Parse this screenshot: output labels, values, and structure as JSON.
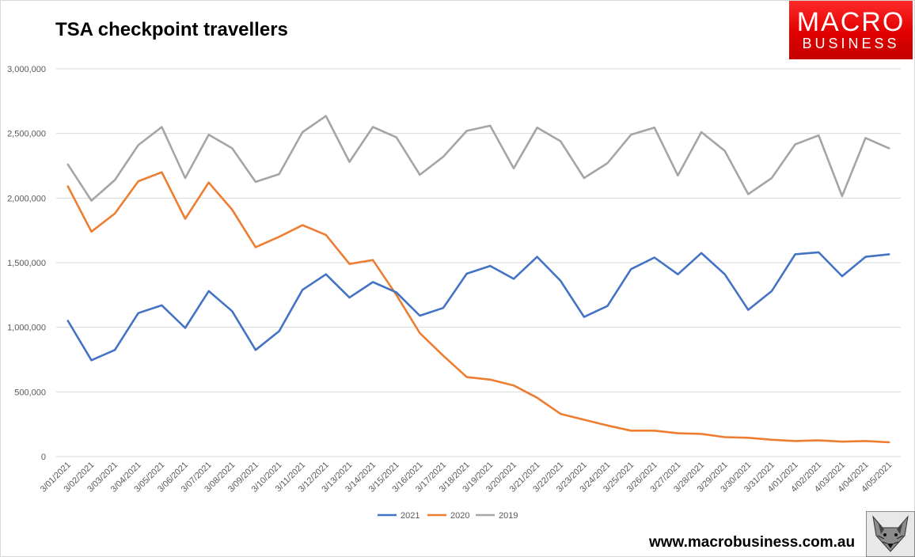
{
  "header": {
    "title": "TSA checkpoint travellers",
    "logo_line1": "MACRO",
    "logo_line2": "BUSINESS"
  },
  "footer": {
    "website": "www.macrobusiness.com.au"
  },
  "colors": {
    "s2021": "#4472c4",
    "s2020": "#ed7d31",
    "s2019": "#a5a5a5",
    "grid": "#d9d9d9",
    "logo_red": "#e00000"
  },
  "chart_data": {
    "type": "line",
    "title": "TSA checkpoint travellers",
    "xlabel": "",
    "ylabel": "",
    "ylim": [
      0,
      3000000
    ],
    "yticks": [
      0,
      500000,
      1000000,
      1500000,
      2000000,
      2500000,
      3000000
    ],
    "ytick_labels": [
      "0",
      "500,000",
      "1,000,000",
      "1,500,000",
      "2,000,000",
      "2,500,000",
      "3,000,000"
    ],
    "grid": true,
    "legend_position": "bottom",
    "categories": [
      "3/01/2021",
      "3/02/2021",
      "3/03/2021",
      "3/04/2021",
      "3/05/2021",
      "3/06/2021",
      "3/07/2021",
      "3/08/2021",
      "3/09/2021",
      "3/10/2021",
      "3/11/2021",
      "3/12/2021",
      "3/13/2021",
      "3/14/2021",
      "3/15/2021",
      "3/16/2021",
      "3/17/2021",
      "3/18/2021",
      "3/19/2021",
      "3/20/2021",
      "3/21/2021",
      "3/22/2021",
      "3/23/2021",
      "3/24/2021",
      "3/25/2021",
      "3/26/2021",
      "3/27/2021",
      "3/28/2021",
      "3/29/2021",
      "3/30/2021",
      "3/31/2021",
      "4/01/2021",
      "4/02/2021",
      "4/03/2021",
      "4/04/2021",
      "4/05/2021"
    ],
    "series": [
      {
        "name": "2021",
        "values": [
          1050000,
          745000,
          825000,
          1110000,
          1170000,
          995000,
          1280000,
          1125000,
          825000,
          970000,
          1290000,
          1410000,
          1230000,
          1350000,
          1270000,
          1090000,
          1150000,
          1415000,
          1475000,
          1375000,
          1545000,
          1360000,
          1080000,
          1165000,
          1450000,
          1540000,
          1410000,
          1575000,
          1410000,
          1135000,
          1280000,
          1565000,
          1580000,
          1395000,
          1545000,
          1565000
        ]
      },
      {
        "name": "2020",
        "values": [
          2090000,
          1740000,
          1880000,
          2130000,
          2200000,
          1840000,
          2120000,
          1910000,
          1620000,
          1700000,
          1790000,
          1715000,
          1490000,
          1520000,
          1250000,
          955000,
          780000,
          615000,
          595000,
          550000,
          455000,
          330000,
          285000,
          240000,
          200000,
          200000,
          180000,
          175000,
          150000,
          145000,
          130000,
          120000,
          125000,
          115000,
          120000,
          110000
        ]
      },
      {
        "name": "2019",
        "values": [
          2260000,
          1980000,
          2140000,
          2410000,
          2550000,
          2155000,
          2490000,
          2385000,
          2125000,
          2185000,
          2510000,
          2635000,
          2280000,
          2550000,
          2470000,
          2180000,
          2320000,
          2520000,
          2560000,
          2230000,
          2545000,
          2440000,
          2155000,
          2270000,
          2490000,
          2545000,
          2175000,
          2510000,
          2365000,
          2030000,
          2155000,
          2415000,
          2485000,
          2015000,
          2465000,
          2385000
        ]
      }
    ]
  }
}
